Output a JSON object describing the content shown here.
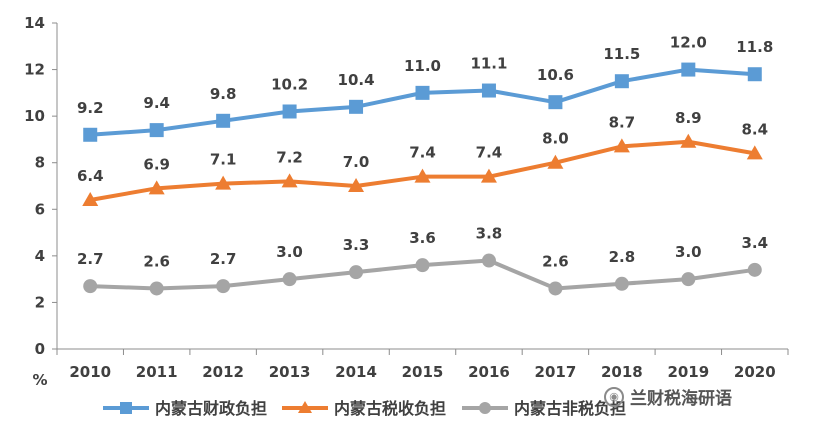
{
  "chart_data": {
    "type": "line",
    "categories": [
      "2010",
      "2011",
      "2012",
      "2013",
      "2014",
      "2015",
      "2016",
      "2017",
      "2018",
      "2019",
      "2020"
    ],
    "ylim": [
      0,
      14
    ],
    "yticks": [
      "0",
      "2",
      "4",
      "6",
      "8",
      "10",
      "12",
      "14"
    ],
    "yunit": "%",
    "grid": false,
    "legend_position": "bottom",
    "series": [
      {
        "name": "内蒙古财政负担",
        "color": "#5b9bd5",
        "marker": "square",
        "values": [
          9.2,
          9.4,
          9.8,
          10.2,
          10.4,
          11.0,
          11.1,
          10.6,
          11.5,
          12.0,
          11.8
        ],
        "labels": [
          "9.2",
          "9.4",
          "9.8",
          "10.2",
          "10.4",
          "11.0",
          "11.1",
          "10.6",
          "11.5",
          "12.0",
          "11.8"
        ]
      },
      {
        "name": "内蒙古税收负担",
        "color": "#ed7d31",
        "marker": "triangle",
        "values": [
          6.4,
          6.9,
          7.1,
          7.2,
          7.0,
          7.4,
          7.4,
          8.0,
          8.7,
          8.9,
          8.4
        ],
        "labels": [
          "6.4",
          "6.9",
          "7.1",
          "7.2",
          "7.0",
          "7.4",
          "7.4",
          "8.0",
          "8.7",
          "8.9",
          "8.4"
        ]
      },
      {
        "name": "内蒙古非税负担",
        "color": "#a5a5a5",
        "marker": "circle",
        "values": [
          2.7,
          2.6,
          2.7,
          3.0,
          3.3,
          3.6,
          3.8,
          2.6,
          2.8,
          3.0,
          3.4
        ],
        "labels": [
          "2.7",
          "2.6",
          "2.7",
          "3.0",
          "3.3",
          "3.6",
          "3.8",
          "2.6",
          "2.8",
          "3.0",
          "3.4"
        ]
      }
    ]
  },
  "watermark": {
    "icon": "wechat-icon",
    "text": "兰财税海研语"
  }
}
